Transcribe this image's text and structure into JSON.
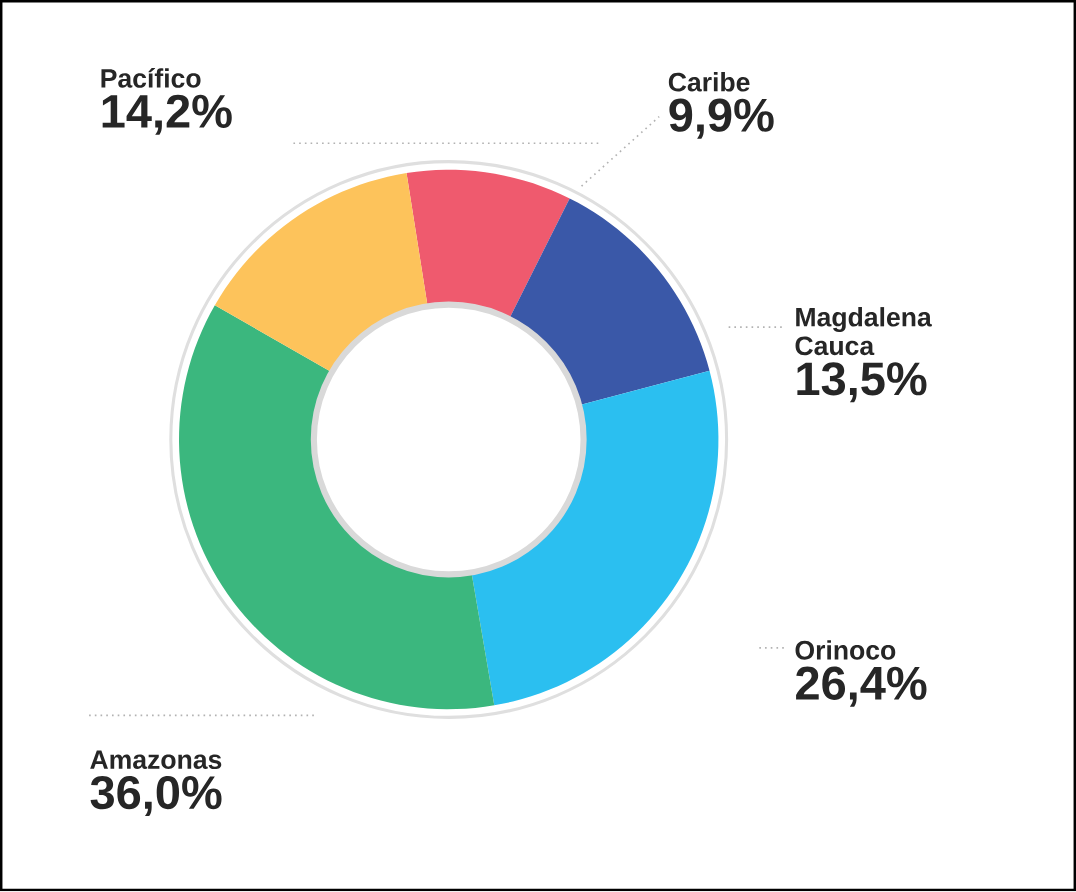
{
  "chart_data": {
    "type": "donut",
    "categories": [
      "Caribe",
      "Magdalena Cauca",
      "Orinoco",
      "Amazonas",
      "Pacífico"
    ],
    "values": [
      9.9,
      13.5,
      26.4,
      36.0,
      14.2
    ],
    "colors": [
      "#ef5a6e",
      "#3a58a8",
      "#2bbff0",
      "#3bb77e",
      "#fdc35b"
    ],
    "value_labels": [
      "9,9%",
      "13,5%",
      "26,4%",
      "36,0%",
      "14,2%"
    ]
  }
}
